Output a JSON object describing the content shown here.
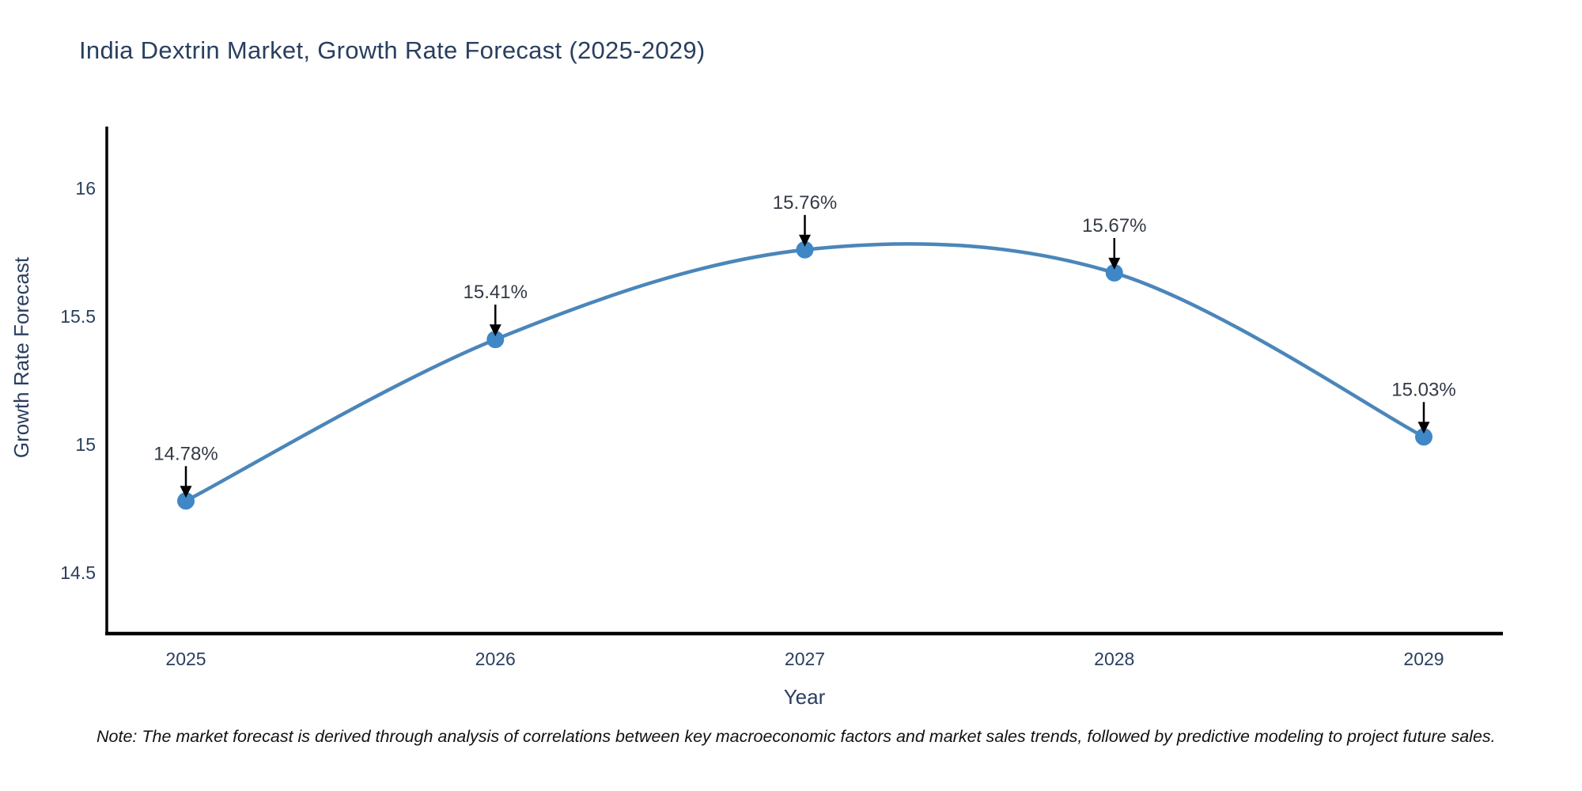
{
  "title": "India Dextrin Market, Growth Rate Forecast (2025-2029)",
  "note": "Note: The market forecast is derived through analysis of correlations between key macroeconomic factors and market sales trends, followed by predictive modeling to project future sales.",
  "chart_data": {
    "type": "line",
    "line_shape": "spline",
    "title": "India Dextrin Market, Growth Rate Forecast (2025-2029)",
    "xlabel": "Year",
    "ylabel": "Growth Rate Forecast",
    "categories": [
      "2025",
      "2026",
      "2027",
      "2028",
      "2029"
    ],
    "values": [
      14.78,
      15.41,
      15.76,
      15.67,
      15.03
    ],
    "point_labels": [
      "14.78%",
      "15.41%",
      "15.76%",
      "15.67%",
      "15.03%"
    ],
    "series_name": "Growth Rate Forecast",
    "y_ticks": [
      {
        "value": 16,
        "label": "16"
      },
      {
        "value": 15.5,
        "label": "15.5"
      },
      {
        "value": 15,
        "label": "15"
      },
      {
        "value": 14.5,
        "label": "14.5"
      }
    ],
    "ylim": [
      14.26,
      16.24
    ],
    "xlim": [
      2024.74,
      2029.26
    ],
    "grid": false,
    "legend": false,
    "annotations": "black arrows pointing down to each data point from percentage labels",
    "colors": {
      "line": "#4b86ba",
      "marker": "#3f87c5",
      "axis": "#000000",
      "tick_text": "#2a3f5f",
      "title_text": "#2a3f5f",
      "annotation_text": "#333a46",
      "arrow": "#000000",
      "background": "#ffffff"
    }
  }
}
